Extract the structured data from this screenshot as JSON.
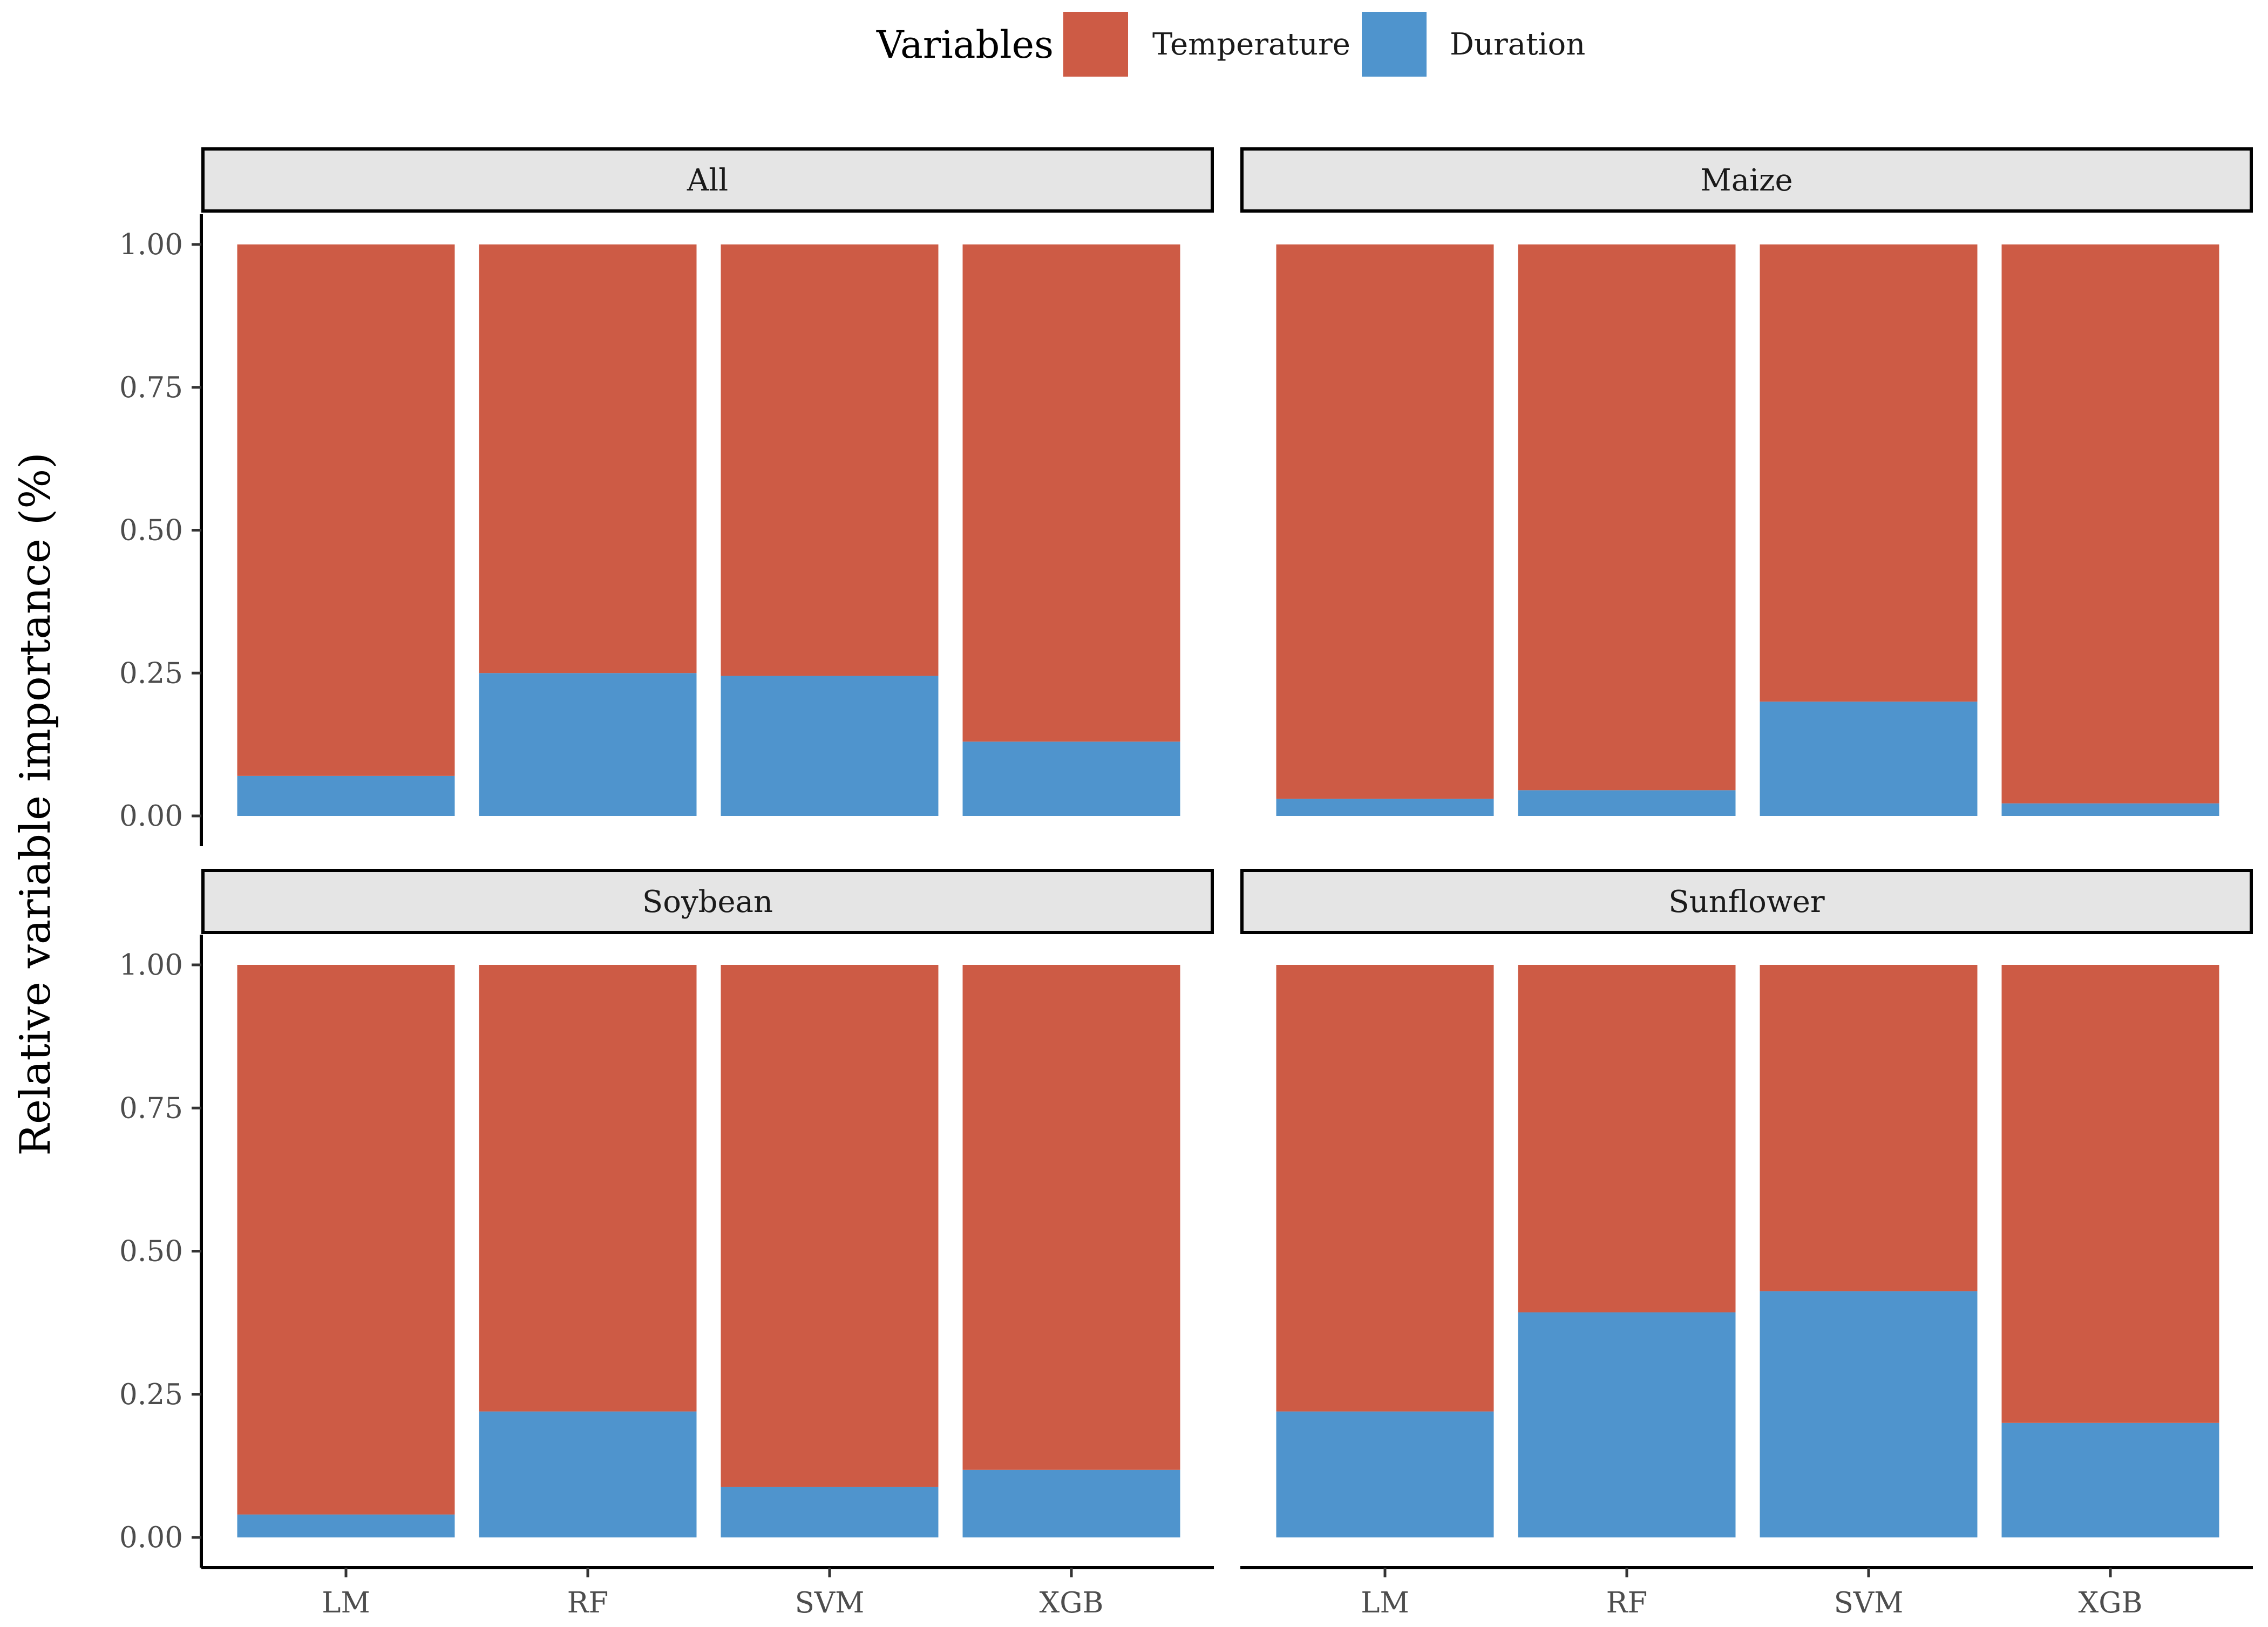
{
  "chart_data": {
    "type": "bar",
    "stacked": true,
    "ylabel": "Relative variable importance (%)",
    "ylim": [
      0,
      1
    ],
    "yticks": [
      "0.00",
      "0.25",
      "0.50",
      "0.75",
      "1.00"
    ],
    "categories": [
      "LM",
      "RF",
      "SVM",
      "XGB"
    ],
    "legend": {
      "title": "Variables",
      "position": "top",
      "entries": [
        {
          "name": "Temperature",
          "color": "#CD5B45"
        },
        {
          "name": "Duration",
          "color": "#4F94CD"
        }
      ]
    },
    "panels": [
      {
        "title": "All",
        "series": [
          {
            "name": "Duration",
            "values": [
              0.07,
              0.25,
              0.245,
              0.13
            ]
          },
          {
            "name": "Temperature",
            "values": [
              0.93,
              0.75,
              0.755,
              0.87
            ]
          }
        ]
      },
      {
        "title": "Maize",
        "series": [
          {
            "name": "Duration",
            "values": [
              0.03,
              0.045,
              0.2,
              0.022
            ]
          },
          {
            "name": "Temperature",
            "values": [
              0.97,
              0.955,
              0.8,
              0.978
            ]
          }
        ]
      },
      {
        "title": "Soybean",
        "series": [
          {
            "name": "Duration",
            "values": [
              0.04,
              0.22,
              0.088,
              0.118
            ]
          },
          {
            "name": "Temperature",
            "values": [
              0.96,
              0.78,
              0.912,
              0.882
            ]
          }
        ]
      },
      {
        "title": "Sunflower",
        "series": [
          {
            "name": "Duration",
            "values": [
              0.22,
              0.393,
              0.43,
              0.2
            ]
          },
          {
            "name": "Temperature",
            "values": [
              0.78,
              0.607,
              0.57,
              0.8
            ]
          }
        ]
      }
    ]
  }
}
